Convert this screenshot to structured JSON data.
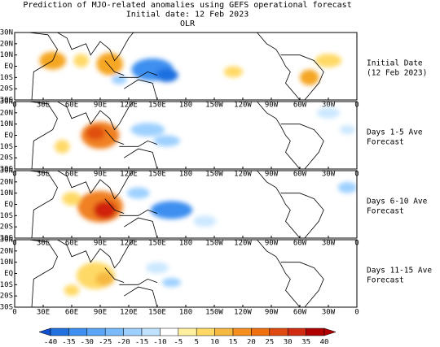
{
  "title_lines": [
    "Prediction of MJO-related anomalies using GEFS operational forecast",
    "Initial date: 12 Feb 2023",
    "OLR"
  ],
  "panels": [
    {
      "label_lines": [
        "Initial Date",
        "(12 Feb 2023)"
      ]
    },
    {
      "label_lines": [
        "Days 1-5 Ave",
        "Forecast"
      ]
    },
    {
      "label_lines": [
        "Days 6-10 Ave",
        "Forecast"
      ]
    },
    {
      "label_lines": [
        "Days 11-15 Ave",
        "Forecast"
      ]
    }
  ],
  "lat_labels": [
    "30N",
    "20N",
    "10N",
    "EQ",
    "10S",
    "20S",
    "30S"
  ],
  "lon_labels": [
    "0",
    "30E",
    "60E",
    "90E",
    "120E",
    "150E",
    "180",
    "150W",
    "120W",
    "90W",
    "60W",
    "30W",
    "0"
  ],
  "colorbar": {
    "labels": [
      -40,
      -35,
      -30,
      -25,
      -20,
      -15,
      -10,
      -5,
      5,
      10,
      15,
      20,
      25,
      30,
      35,
      40
    ]
  }
}
